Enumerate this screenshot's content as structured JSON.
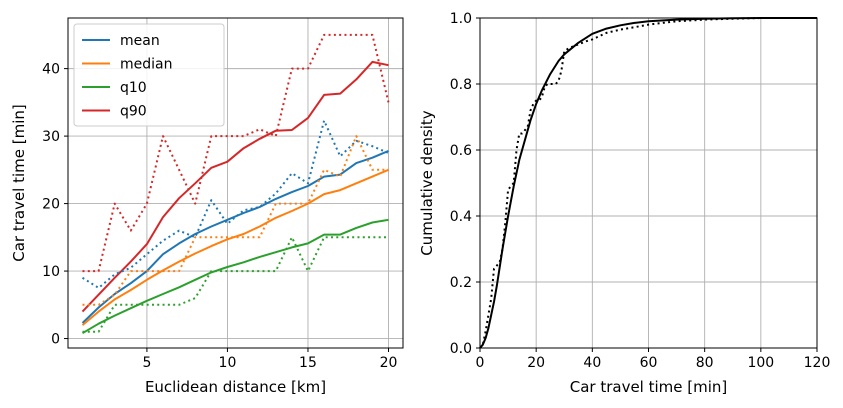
{
  "chart_data": [
    {
      "type": "line",
      "xlabel": "Euclidean distance [km]",
      "ylabel": "Car travel time [min]",
      "xlim": [
        0.1,
        20.9
      ],
      "ylim": [
        -1.4,
        47.5
      ],
      "xticks": [
        5,
        10,
        15,
        20
      ],
      "yticks": [
        0,
        10,
        20,
        30,
        40
      ],
      "grid": true,
      "legend_position": "upper-left",
      "x": [
        1,
        2,
        3,
        4,
        5,
        6,
        7,
        8,
        9,
        10,
        11,
        12,
        13,
        14,
        15,
        16,
        17,
        18,
        19,
        20
      ],
      "series": [
        {
          "name": "mean",
          "color": "#1f77b4",
          "style": "solid",
          "values": [
            2.3,
            4.6,
            6.6,
            8.2,
            10.0,
            12.5,
            14.1,
            15.5,
            16.6,
            17.6,
            18.6,
            19.5,
            20.7,
            21.7,
            22.6,
            24.0,
            24.3,
            26.0,
            26.8,
            27.8
          ]
        },
        {
          "name": "median",
          "color": "#ff7f0e",
          "style": "solid",
          "values": [
            2.0,
            4.0,
            5.8,
            7.2,
            8.7,
            10.1,
            11.4,
            12.6,
            13.7,
            14.7,
            15.5,
            16.6,
            17.9,
            18.9,
            20.0,
            21.4,
            22.0,
            23.0,
            24.0,
            25.0
          ]
        },
        {
          "name": "q10",
          "color": "#2ca02c",
          "style": "solid",
          "values": [
            0.8,
            2.2,
            3.4,
            4.5,
            5.6,
            6.6,
            7.6,
            8.7,
            9.8,
            10.6,
            11.3,
            12.1,
            12.8,
            13.5,
            14.1,
            15.4,
            15.4,
            16.4,
            17.2,
            17.6
          ]
        },
        {
          "name": "q90",
          "color": "#d62728",
          "style": "solid",
          "values": [
            4.0,
            6.5,
            9.0,
            11.4,
            14.0,
            18.0,
            20.8,
            23.0,
            25.3,
            26.2,
            28.2,
            29.6,
            30.8,
            30.9,
            32.7,
            36.1,
            36.3,
            38.4,
            41.0,
            40.5
          ]
        },
        {
          "color": "#1f77b4",
          "style": "dotted",
          "values": [
            9.0,
            7.5,
            9.5,
            10.5,
            12.5,
            14.5,
            16.0,
            15.0,
            20.5,
            17.0,
            19.0,
            19.5,
            21.5,
            24.5,
            23.0,
            32.3,
            27.0,
            29.3,
            28.5,
            27.5
          ]
        },
        {
          "color": "#ff7f0e",
          "style": "dotted",
          "values": [
            5.0,
            5.0,
            6.5,
            10.0,
            10.0,
            10.0,
            10.0,
            15.0,
            15.0,
            15.0,
            15.0,
            15.0,
            20.0,
            20.0,
            20.0,
            25.0,
            24.0,
            30.0,
            25.0,
            25.0
          ]
        },
        {
          "color": "#2ca02c",
          "style": "dotted",
          "values": [
            1.0,
            1.0,
            5.0,
            5.0,
            5.0,
            5.0,
            5.0,
            6.0,
            10.0,
            10.0,
            10.0,
            10.0,
            10.0,
            15.0,
            10.0,
            15.0,
            15.0,
            15.0,
            15.0,
            15.0
          ]
        },
        {
          "color": "#d62728",
          "style": "dotted",
          "values": [
            10.0,
            10.0,
            20.0,
            16.0,
            20.0,
            30.0,
            25.0,
            20.0,
            30.0,
            30.0,
            30.0,
            31.0,
            30.0,
            40.0,
            40.0,
            45.0,
            45.0,
            45.0,
            45.0,
            35.0
          ]
        }
      ]
    },
    {
      "type": "line",
      "xlabel": "Car travel time [min]",
      "ylabel": "Cumulative density",
      "xlim": [
        0,
        120
      ],
      "ylim": [
        0,
        1
      ],
      "xticks": [
        0,
        20,
        40,
        60,
        80,
        100,
        120
      ],
      "yticks": [
        0.0,
        0.2,
        0.4,
        0.6,
        0.8,
        1.0
      ],
      "grid": true,
      "series": [
        {
          "color": "#000000",
          "style": "solid",
          "x": [
            0,
            1,
            2,
            3,
            4,
            5,
            6,
            8,
            10,
            12,
            14,
            16,
            18,
            20,
            22,
            25,
            28,
            30,
            35,
            40,
            45,
            50,
            55,
            60,
            70,
            80,
            90,
            100,
            110,
            120
          ],
          "y": [
            0.0,
            0.01,
            0.03,
            0.06,
            0.1,
            0.14,
            0.19,
            0.3,
            0.4,
            0.49,
            0.57,
            0.63,
            0.69,
            0.74,
            0.78,
            0.83,
            0.87,
            0.89,
            0.925,
            0.952,
            0.968,
            0.978,
            0.985,
            0.99,
            0.995,
            0.998,
            0.999,
            1.0,
            1.0,
            1.0
          ]
        },
        {
          "color": "#000000",
          "style": "dotted",
          "x": [
            0,
            1,
            2,
            3,
            4,
            5,
            6,
            7,
            8,
            9,
            10,
            11,
            12,
            13,
            14,
            15,
            16,
            17,
            18,
            19,
            20,
            21,
            22,
            23,
            24,
            25,
            26,
            27,
            28,
            29,
            30,
            32,
            35,
            38,
            40,
            45,
            50,
            55,
            60,
            70,
            80,
            90,
            100,
            110,
            120
          ],
          "y": [
            0.0,
            0.01,
            0.05,
            0.1,
            0.15,
            0.24,
            0.25,
            0.26,
            0.3,
            0.38,
            0.48,
            0.49,
            0.5,
            0.6,
            0.65,
            0.65,
            0.66,
            0.67,
            0.72,
            0.74,
            0.75,
            0.75,
            0.76,
            0.79,
            0.8,
            0.8,
            0.8,
            0.8,
            0.81,
            0.84,
            0.9,
            0.91,
            0.92,
            0.93,
            0.935,
            0.955,
            0.965,
            0.972,
            0.98,
            0.99,
            0.995,
            0.998,
            1.0,
            1.0,
            1.0
          ]
        }
      ]
    }
  ]
}
